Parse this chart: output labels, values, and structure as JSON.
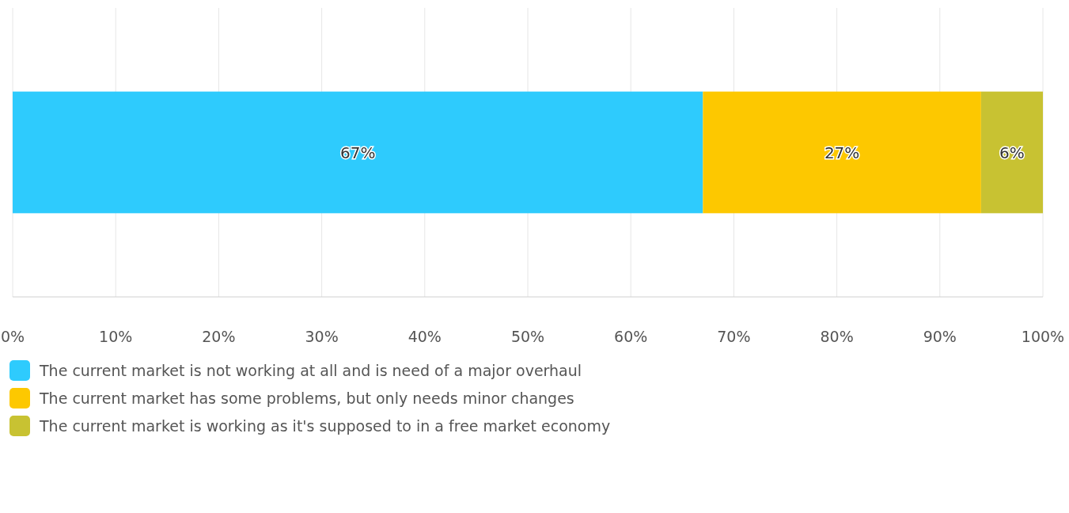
{
  "chart_data": {
    "type": "bar",
    "orientation": "horizontal",
    "stacked": true,
    "categories": [
      null
    ],
    "series": [
      {
        "name": "The current market is not working at all and is need of a major overhaul",
        "color": "#2ecbfd",
        "values": [
          67
        ],
        "value_labels": [
          "67%"
        ]
      },
      {
        "name": "The current market has some problems, but only needs minor changes",
        "color": "#fdc800",
        "values": [
          27
        ],
        "value_labels": [
          "27%"
        ]
      },
      {
        "name": "The current market is working as it's supposed to in a free market economy",
        "color": "#c8c232",
        "values": [
          6
        ],
        "value_labels": [
          "6%"
        ]
      }
    ],
    "xlim": [
      0,
      100
    ],
    "xticks": [
      {
        "value": 0,
        "label": "0%"
      },
      {
        "value": 10,
        "label": "10%"
      },
      {
        "value": 20,
        "label": "20%"
      },
      {
        "value": 30,
        "label": "30%"
      },
      {
        "value": 40,
        "label": "40%"
      },
      {
        "value": 50,
        "label": "50%"
      },
      {
        "value": 60,
        "label": "60%"
      },
      {
        "value": 70,
        "label": "70%"
      },
      {
        "value": 80,
        "label": "80%"
      },
      {
        "value": 90,
        "label": "90%"
      },
      {
        "value": 100,
        "label": "100%"
      }
    ],
    "grid": "x",
    "legend": "bottom"
  }
}
